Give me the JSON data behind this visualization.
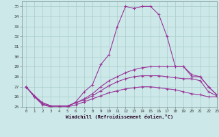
{
  "xlabel": "Windchill (Refroidissement éolien,°C)",
  "bg_color": "#cce8e8",
  "grid_color": "#aacccc",
  "line_color": "#993399",
  "xlim": [
    -0.5,
    23
  ],
  "ylim": [
    25,
    35.5
  ],
  "yticks": [
    25,
    26,
    27,
    28,
    29,
    30,
    31,
    32,
    33,
    34,
    35
  ],
  "xticks": [
    0,
    1,
    2,
    3,
    4,
    5,
    6,
    7,
    8,
    9,
    10,
    11,
    12,
    13,
    14,
    15,
    16,
    17,
    18,
    19,
    20,
    21,
    22,
    23
  ],
  "line1_x": [
    0,
    1,
    2,
    3,
    4,
    5,
    6,
    7,
    8,
    9,
    10,
    11,
    12,
    13,
    14,
    15,
    16,
    17,
    18,
    19,
    20,
    21,
    22,
    23
  ],
  "line1_y": [
    27.0,
    26.0,
    25.2,
    25.0,
    25.0,
    25.0,
    25.5,
    26.5,
    27.2,
    29.2,
    30.2,
    33.0,
    35.0,
    34.8,
    35.0,
    35.0,
    34.2,
    32.0,
    29.0,
    29.0,
    28.0,
    28.0,
    27.0,
    26.2
  ],
  "line2_x": [
    0,
    1,
    2,
    3,
    4,
    5,
    6,
    7,
    8,
    9,
    10,
    11,
    12,
    13,
    14,
    15,
    16,
    17,
    18,
    19,
    20,
    21,
    22,
    23
  ],
  "line2_y": [
    27.0,
    26.1,
    25.4,
    25.1,
    25.1,
    25.1,
    25.4,
    25.8,
    26.3,
    27.0,
    27.6,
    28.0,
    28.4,
    28.7,
    28.9,
    29.0,
    29.0,
    29.0,
    29.0,
    29.0,
    28.2,
    28.0,
    27.0,
    26.2
  ],
  "line3_x": [
    0,
    1,
    2,
    3,
    4,
    5,
    6,
    7,
    8,
    9,
    10,
    11,
    12,
    13,
    14,
    15,
    16,
    17,
    18,
    19,
    20,
    21,
    22,
    23
  ],
  "line3_y": [
    27.0,
    26.1,
    25.4,
    25.1,
    25.1,
    25.1,
    25.4,
    25.7,
    26.1,
    26.6,
    27.1,
    27.5,
    27.8,
    28.0,
    28.1,
    28.1,
    28.1,
    28.0,
    27.9,
    27.8,
    27.8,
    27.6,
    26.5,
    26.1
  ],
  "line4_x": [
    0,
    1,
    2,
    3,
    4,
    5,
    6,
    7,
    8,
    9,
    10,
    11,
    12,
    13,
    14,
    15,
    16,
    17,
    18,
    19,
    20,
    21,
    22,
    23
  ],
  "line4_y": [
    27.0,
    26.0,
    25.3,
    25.0,
    25.0,
    25.0,
    25.2,
    25.5,
    25.8,
    26.1,
    26.4,
    26.6,
    26.8,
    26.9,
    27.0,
    27.0,
    26.9,
    26.8,
    26.7,
    26.5,
    26.3,
    26.2,
    26.0,
    26.0
  ]
}
